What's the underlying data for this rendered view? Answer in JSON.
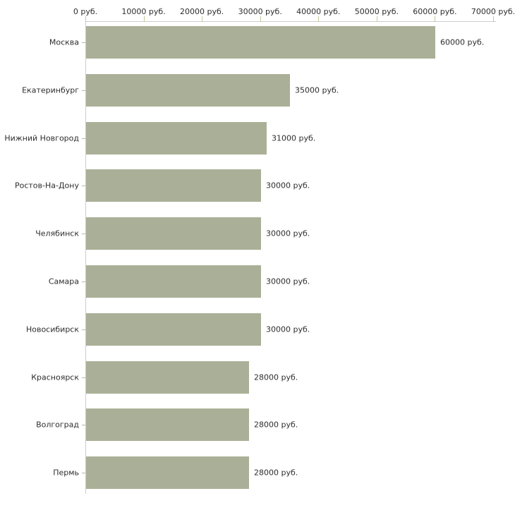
{
  "chart_data": {
    "type": "bar",
    "orientation": "horizontal",
    "title": "",
    "unit": "руб.",
    "categories": [
      "Москва",
      "Екатеринбург",
      "Нижний Новгород",
      "Ростов-На-Дону",
      "Челябинск",
      "Самара",
      "Новосибирск",
      "Красноярск",
      "Волгоград",
      "Пермь"
    ],
    "values": [
      60000,
      35000,
      31000,
      30000,
      30000,
      30000,
      30000,
      28000,
      28000,
      28000
    ],
    "value_labels": [
      "60000 руб.",
      "35000 руб.",
      "31000 руб.",
      "30000 руб.",
      "30000 руб.",
      "30000 руб.",
      "30000 руб.",
      "28000 руб.",
      "28000 руб.",
      "28000 руб."
    ],
    "x_axis": {
      "position": "top",
      "ticks": [
        0,
        10000,
        20000,
        30000,
        40000,
        50000,
        60000,
        70000
      ],
      "tick_labels": [
        "0 руб.",
        "10000 руб.",
        "20000 руб.",
        "30000 руб.",
        "40000 руб.",
        "50000 руб.",
        "60000 руб.",
        "70000 руб."
      ],
      "range": [
        0,
        70000
      ]
    },
    "grid": false,
    "legend": false,
    "colors": {
      "bar": "#a9b097",
      "axis_line": "#cccccc",
      "x_tick": "#c6c69e",
      "category_tick": "#b3b3b3",
      "text": "#2d2d2d",
      "background": "#ffffff"
    }
  }
}
